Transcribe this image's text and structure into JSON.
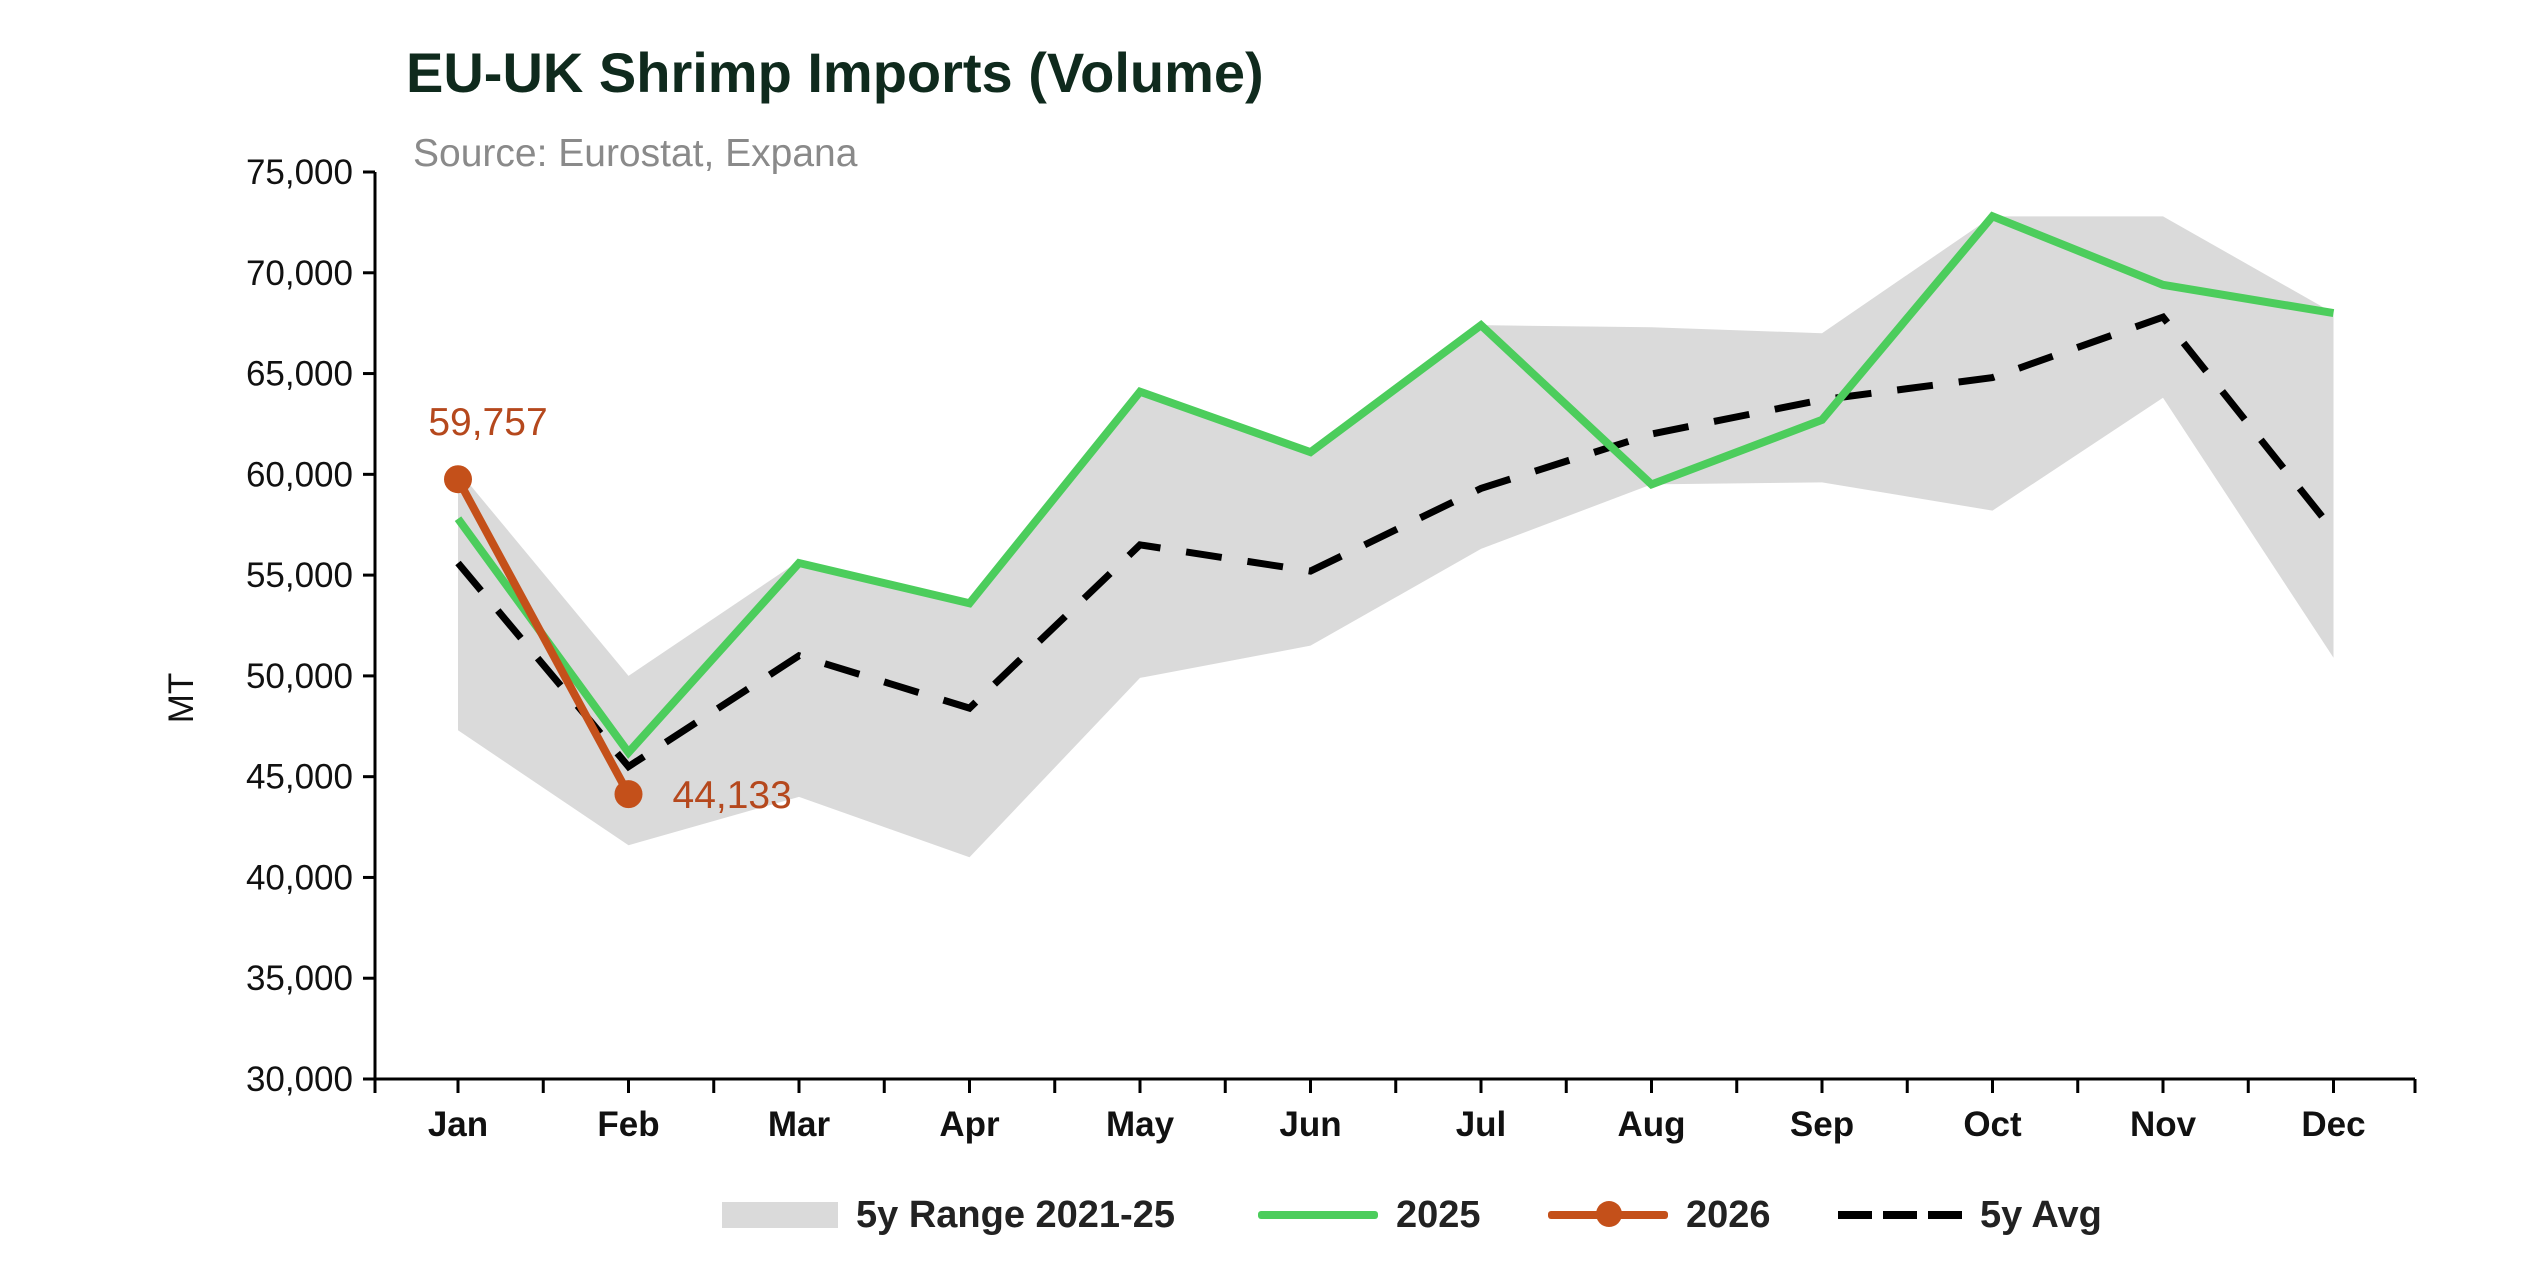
{
  "chart_data": {
    "type": "line",
    "title": "EU-UK Shrimp Imports (Volume)",
    "subtitle": "Source: Eurostat, Expana",
    "xlabel": "",
    "ylabel": "MT",
    "ylim": [
      30000,
      75000
    ],
    "yticks": [
      30000,
      35000,
      40000,
      45000,
      50000,
      55000,
      60000,
      65000,
      70000,
      75000
    ],
    "ytick_labels": [
      "30,000",
      "35,000",
      "40,000",
      "45,000",
      "50,000",
      "55,000",
      "60,000",
      "65,000",
      "70,000",
      "75,000"
    ],
    "categories": [
      "Jan",
      "Feb",
      "Mar",
      "Apr",
      "May",
      "Jun",
      "Jul",
      "Aug",
      "Sep",
      "Oct",
      "Nov",
      "Dec"
    ],
    "range": {
      "name": "5y Range 2021-25",
      "color": "#dadada",
      "min": [
        47300,
        41600,
        44000,
        41000,
        49900,
        51500,
        56300,
        59500,
        59600,
        58200,
        63800,
        50900
      ],
      "max": [
        60200,
        50000,
        55700,
        53500,
        64200,
        61000,
        67400,
        67300,
        67000,
        72800,
        72800,
        68000
      ]
    },
    "series": [
      {
        "name": "2025",
        "color": "#4ccd5c",
        "style": "solid",
        "values": [
          57800,
          46200,
          55600,
          53600,
          64100,
          61100,
          67400,
          59500,
          62700,
          72800,
          69400,
          68000
        ]
      },
      {
        "name": "2026",
        "color": "#c4501a",
        "style": "solid-markers",
        "values": [
          59757,
          44133,
          null,
          null,
          null,
          null,
          null,
          null,
          null,
          null,
          null,
          null
        ],
        "labels": [
          "59,757",
          "44,133"
        ]
      },
      {
        "name": "5y Avg",
        "color": "#000000",
        "style": "dashed",
        "values": [
          55600,
          45500,
          51000,
          48400,
          56500,
          55200,
          59300,
          62000,
          63700,
          64800,
          67800,
          57200
        ]
      }
    ],
    "legend": {
      "position": "bottom",
      "entries": [
        "5y Range 2021-25",
        "2025",
        "2026",
        "5y Avg"
      ]
    }
  }
}
